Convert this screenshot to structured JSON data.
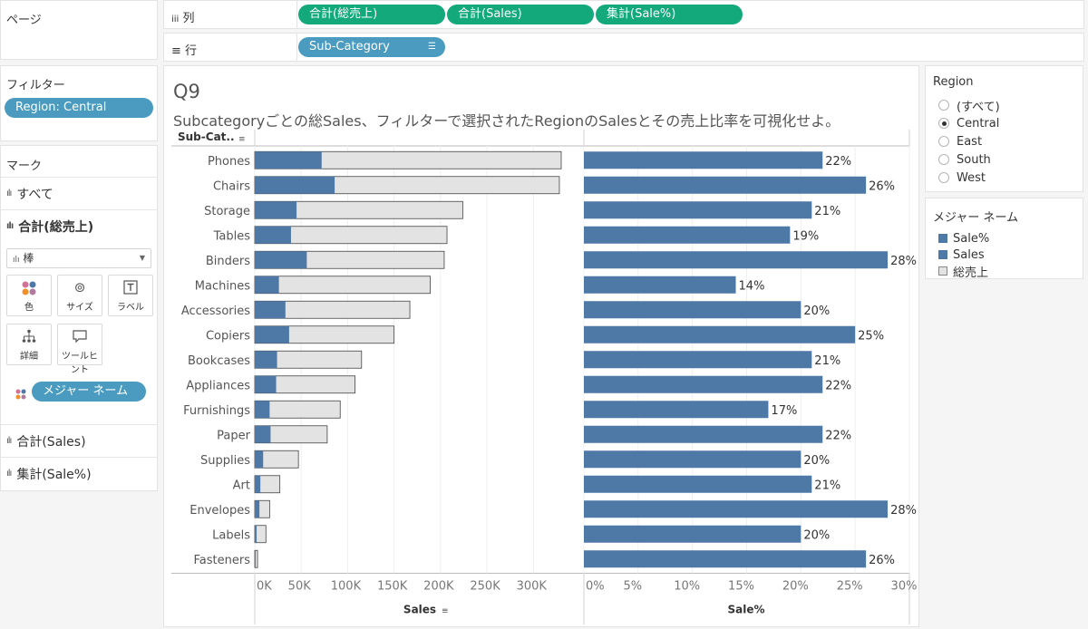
{
  "pages": {
    "title": "ページ"
  },
  "filters": {
    "title": "フィルター",
    "pill": "Region: Central"
  },
  "marks": {
    "title": "マーク",
    "all": "すべて",
    "total_sales": "合計(総売上)",
    "mark_type": "棒",
    "cards": [
      "色",
      "サイズ",
      "ラベル",
      "詳細",
      "ツールヒント"
    ],
    "measure_names_pill": "メジャー ネーム",
    "sum_sales": "合計(Sales)",
    "agg_sale_pct": "集計(Sale%)"
  },
  "shelves": {
    "columns_label": "列",
    "rows_label": "行",
    "columns": [
      "合計(総売上)",
      "合計(Sales)",
      "集計(Sale%)"
    ],
    "rows": [
      "Sub-Category"
    ]
  },
  "view": {
    "title": "Q9",
    "subtitle": "Subcategoryごとの総Sales、フィルターで選択されたRegionのSalesとその売上比率を可視化せよ。"
  },
  "region_filter": {
    "title": "Region",
    "options": [
      "(すべて)",
      "Central",
      "East",
      "South",
      "West"
    ],
    "selected": "Central"
  },
  "measure_legend": {
    "title": "メジャー ネーム",
    "items": [
      {
        "label": "Sale%",
        "color": "#4e79a7"
      },
      {
        "label": "Sales",
        "color": "#4e79a7"
      },
      {
        "label": "総売上",
        "color": "#e3e3e3"
      }
    ]
  },
  "colors": {
    "bar": "#4e79a7",
    "total": "#e3e3e3",
    "pill_blue": "#4a9bbf",
    "pill_green": "#13a97b"
  },
  "chart_data": [
    {
      "type": "bar",
      "orientation": "horizontal",
      "row_header": "Sub-Cat..",
      "xlabel": "Sales",
      "xlim": [
        0,
        330000
      ],
      "xticks": [
        "0K",
        "50K",
        "100K",
        "150K",
        "200K",
        "250K",
        "300K"
      ],
      "categories": [
        "Phones",
        "Chairs",
        "Storage",
        "Tables",
        "Binders",
        "Machines",
        "Accessories",
        "Copiers",
        "Bookcases",
        "Appliances",
        "Furnishings",
        "Paper",
        "Supplies",
        "Art",
        "Envelopes",
        "Labels",
        "Fasteners"
      ],
      "series": [
        {
          "values": [
            330000,
            328000,
            224000,
            207000,
            204000,
            189000,
            167000,
            150000,
            115000,
            108000,
            92000,
            78000,
            47000,
            27000,
            16000,
            12000,
            3000
          ]
        },
        {
          "values": [
            72000,
            86000,
            45000,
            39000,
            56000,
            26000,
            33000,
            37000,
            24000,
            23000,
            16000,
            17000,
            9000,
            6000,
            5000,
            2000,
            1000
          ]
        }
      ]
    },
    {
      "type": "bar",
      "orientation": "horizontal",
      "xlabel": "Sale%",
      "xlim": [
        0,
        0.3
      ],
      "xticks": [
        "0%",
        "5%",
        "10%",
        "15%",
        "20%",
        "25%",
        "30%"
      ],
      "categories": [
        "Phones",
        "Chairs",
        "Storage",
        "Tables",
        "Binders",
        "Machines",
        "Accessories",
        "Copiers",
        "Bookcases",
        "Appliances",
        "Furnishings",
        "Paper",
        "Supplies",
        "Art",
        "Envelopes",
        "Labels",
        "Fasteners"
      ],
      "values": [
        0.22,
        0.26,
        0.21,
        0.19,
        0.28,
        0.14,
        0.2,
        0.25,
        0.21,
        0.22,
        0.17,
        0.22,
        0.2,
        0.21,
        0.28,
        0.2,
        0.26
      ],
      "labels": [
        "22%",
        "26%",
        "21%",
        "19%",
        "28%",
        "14%",
        "20%",
        "25%",
        "21%",
        "22%",
        "17%",
        "22%",
        "20%",
        "21%",
        "28%",
        "20%",
        "26%"
      ]
    }
  ]
}
